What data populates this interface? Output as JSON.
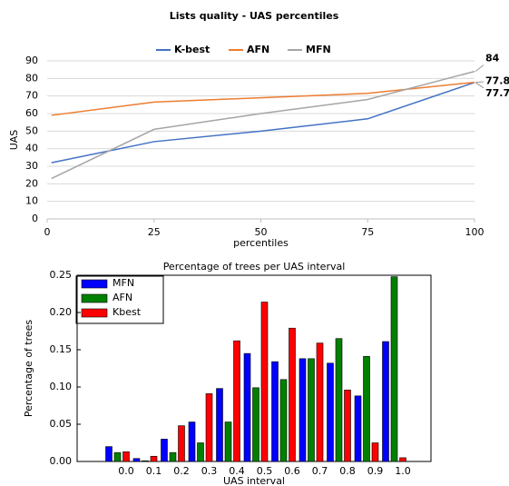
{
  "chart_data": [
    {
      "type": "line",
      "title": "Lists quality - UAS percentiles",
      "x": [
        1,
        25,
        50,
        75,
        100
      ],
      "series": [
        {
          "name": "K-best",
          "color": "#4472c4",
          "values": [
            32,
            44,
            50,
            57,
            77.7
          ]
        },
        {
          "name": "AFN",
          "color": "#ed7d31",
          "values": [
            59,
            66.5,
            69,
            71.5,
            77.8
          ]
        },
        {
          "name": "MFN",
          "color": "#a5a5a5",
          "values": [
            23,
            51,
            60,
            68,
            84
          ]
        }
      ],
      "xlim": [
        0,
        100
      ],
      "xticks": [
        0,
        25,
        50,
        75,
        100
      ],
      "ylim": [
        0,
        90
      ],
      "yticks": [
        0,
        10,
        20,
        30,
        40,
        50,
        60,
        70,
        80,
        90
      ],
      "xlabel": "percentiles",
      "ylabel": "UAS",
      "grid": true,
      "legend": "top"
    },
    {
      "type": "bar",
      "title": "Percentage of trees per UAS interval",
      "categories": [
        "0.0",
        "0.1",
        "0.2",
        "0.3",
        "0.4",
        "0.5",
        "0.6",
        "0.7",
        "0.8",
        "0.9",
        "1.0"
      ],
      "series": [
        {
          "name": "MFN",
          "color": "#0000ff",
          "values": [
            0.02,
            0.004,
            0.03,
            0.053,
            0.098,
            0.145,
            0.134,
            0.138,
            0.132,
            0.088,
            0.161
          ]
        },
        {
          "name": "AFN",
          "color": "#008000",
          "values": [
            0.012,
            0.001,
            0.012,
            0.025,
            0.053,
            0.099,
            0.11,
            0.138,
            0.165,
            0.141,
            0.248
          ]
        },
        {
          "name": "Kbest",
          "color": "#ff0000",
          "values": [
            0.013,
            0.007,
            0.048,
            0.091,
            0.162,
            0.214,
            0.179,
            0.159,
            0.096,
            0.025,
            0.005
          ]
        }
      ],
      "ylim": [
        0,
        0.25
      ],
      "yticks": [
        {
          "value": 0,
          "label": "0.00"
        },
        {
          "value": 0.05,
          "label": "0.05"
        },
        {
          "value": 0.1,
          "label": "0.10"
        },
        {
          "value": 0.15,
          "label": "0.15"
        },
        {
          "value": 0.2,
          "label": "0.20"
        },
        {
          "value": 0.25,
          "label": "0.25"
        }
      ],
      "xlabel": "UAS interval",
      "ylabel": "Percentage of trees",
      "legend": "upper left"
    }
  ]
}
